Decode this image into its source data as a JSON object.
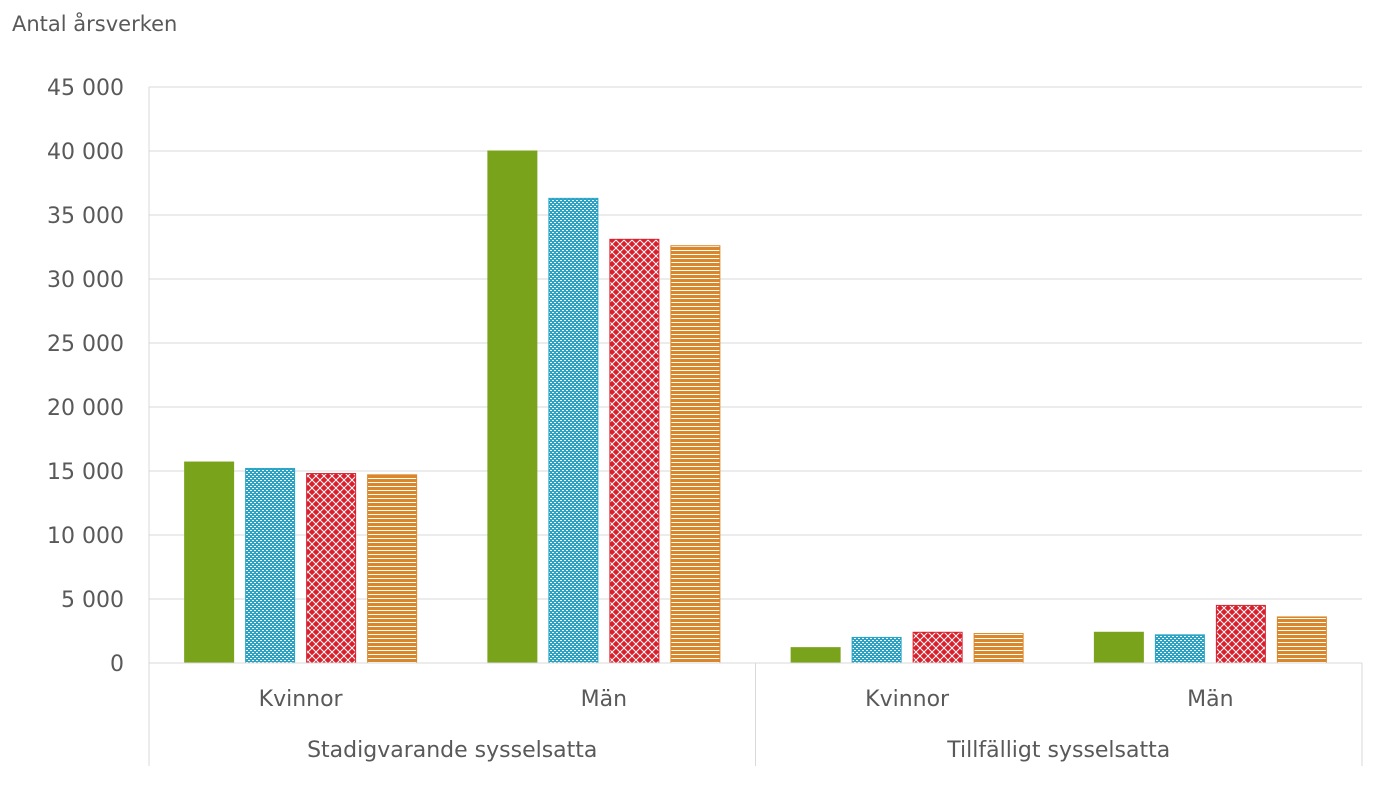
{
  "chart_data": {
    "type": "bar",
    "ylabel": "Antal årsverken",
    "ylim": [
      0,
      45000
    ],
    "yticks": [
      0,
      5000,
      10000,
      15000,
      20000,
      25000,
      30000,
      35000,
      40000,
      45000
    ],
    "ytick_labels": [
      "0",
      "5 000",
      "10 000",
      "15 000",
      "20 000",
      "25 000",
      "30 000",
      "35 000",
      "40 000",
      "45 000"
    ],
    "grid": true,
    "groups": [
      {
        "label": "Stadigvarande sysselsatta",
        "categories": [
          "Kvinnor",
          "Män"
        ]
      },
      {
        "label": "Tillfälligt sysselsatta",
        "categories": [
          "Kvinnor",
          "Män"
        ]
      }
    ],
    "categories": [
      "Kvinnor",
      "Män",
      "Kvinnor",
      "Män"
    ],
    "series": [
      {
        "color": "#7aa31c",
        "pattern": "solid",
        "values": [
          15700,
          40000,
          1200,
          2400
        ]
      },
      {
        "color": "#2aa3c4",
        "pattern": "dots",
        "values": [
          15200,
          36300,
          2000,
          2200
        ]
      },
      {
        "color": "#d7222e",
        "pattern": "crosshatch",
        "values": [
          14800,
          33100,
          2400,
          4500
        ]
      },
      {
        "color": "#d9872a",
        "pattern": "horizontal",
        "values": [
          14700,
          32600,
          2300,
          3600
        ]
      }
    ]
  }
}
